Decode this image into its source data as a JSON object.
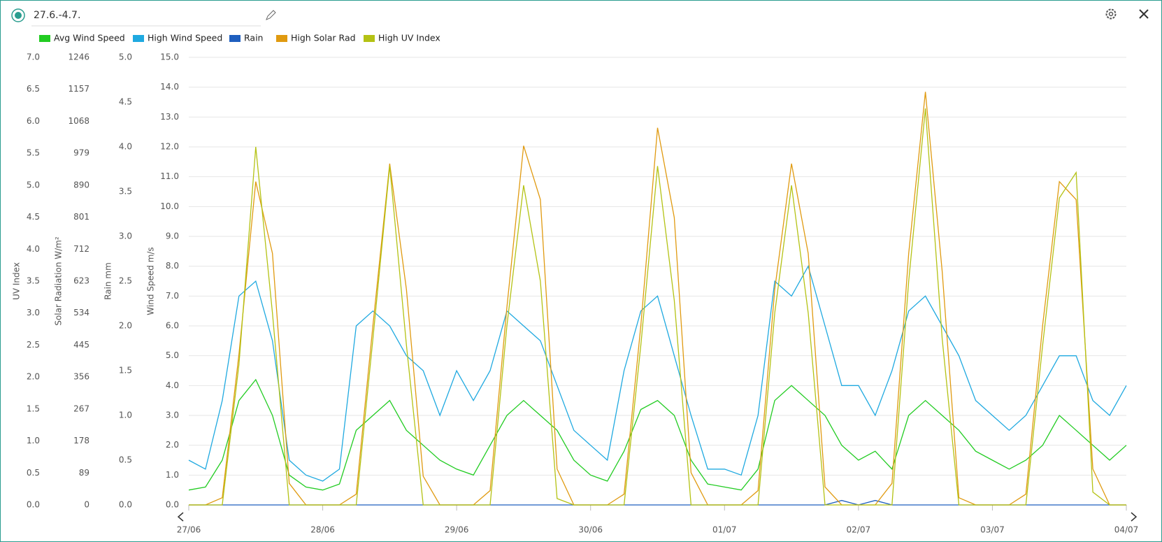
{
  "chart_data": {
    "type": "line",
    "title": "27.6.-4.7.",
    "categories": [
      "27/06",
      null,
      null,
      null,
      null,
      null,
      null,
      null,
      "28/06",
      null,
      null,
      null,
      null,
      null,
      null,
      null,
      "29/06",
      null,
      null,
      null,
      null,
      null,
      null,
      null,
      "30/06",
      null,
      null,
      null,
      null,
      null,
      null,
      null,
      "01/07",
      null,
      null,
      null,
      null,
      null,
      null,
      null,
      "02/07",
      null,
      null,
      null,
      null,
      null,
      null,
      null,
      "03/07",
      null,
      null,
      null,
      null,
      null,
      null,
      null,
      "04/07"
    ],
    "series": [
      {
        "name": "Avg Wind Speed",
        "color": "#22cc22",
        "axis": "y",
        "values": [
          0.5,
          0.6,
          1.5,
          3.5,
          4.2,
          3.0,
          1.0,
          0.6,
          0.5,
          0.7,
          2.5,
          3.0,
          3.5,
          2.5,
          2.0,
          1.5,
          1.2,
          1.0,
          2.0,
          3.0,
          3.5,
          3.0,
          2.5,
          1.5,
          1.0,
          0.8,
          1.8,
          3.2,
          3.5,
          3.0,
          1.5,
          0.7,
          0.6,
          0.5,
          1.2,
          3.5,
          4.0,
          3.5,
          3.0,
          2.0,
          1.5,
          1.8,
          1.2,
          3.0,
          3.5,
          3.0,
          2.5,
          1.8,
          1.5,
          1.2,
          1.5,
          2.0,
          3.0,
          2.5,
          2.0,
          1.5,
          2.0
        ]
      },
      {
        "name": "High Wind Speed",
        "color": "#1fa9e0",
        "axis": "y",
        "values": [
          1.5,
          1.2,
          3.5,
          7.0,
          7.5,
          5.5,
          1.5,
          1.0,
          0.8,
          1.2,
          6.0,
          6.5,
          6.0,
          5.0,
          4.5,
          3.0,
          4.5,
          3.5,
          4.5,
          6.5,
          6.0,
          5.5,
          4.0,
          2.5,
          2.0,
          1.5,
          4.5,
          6.5,
          7.0,
          5.0,
          3.0,
          1.2,
          1.2,
          1.0,
          3.0,
          7.5,
          7.0,
          8.0,
          6.0,
          4.0,
          4.0,
          3.0,
          4.5,
          6.5,
          7.0,
          6.0,
          5.0,
          3.5,
          3.0,
          2.5,
          3.0,
          4.0,
          5.0,
          5.0,
          3.5,
          3.0,
          4.0
        ]
      },
      {
        "name": "Rain",
        "color": "#1f5fbf",
        "axis": "y2",
        "values": [
          0,
          0,
          0,
          0,
          0,
          0,
          0,
          0,
          0,
          0,
          0,
          0,
          0,
          0,
          0,
          0,
          0,
          0,
          0,
          0,
          0,
          0,
          0,
          0,
          0,
          0,
          0,
          0,
          0,
          0,
          0,
          0,
          0,
          0,
          0,
          0,
          0,
          0,
          0,
          0.05,
          0,
          0.05,
          0,
          0,
          0,
          0,
          0,
          0,
          0,
          0,
          0,
          0,
          0,
          0,
          0,
          0,
          0
        ]
      },
      {
        "name": "High Solar Rad",
        "color": "#e09a10",
        "axis": "y3",
        "values": [
          0,
          0,
          20,
          420,
          900,
          700,
          60,
          0,
          0,
          0,
          30,
          500,
          950,
          600,
          80,
          0,
          0,
          0,
          40,
          550,
          1000,
          850,
          100,
          0,
          0,
          0,
          30,
          500,
          1050,
          800,
          90,
          0,
          0,
          0,
          40,
          600,
          950,
          700,
          50,
          0,
          0,
          0,
          60,
          700,
          1150,
          650,
          20,
          0,
          0,
          0,
          30,
          500,
          900,
          850,
          100,
          0,
          0
        ]
      },
      {
        "name": "High UV Index",
        "color": "#b4c214",
        "axis": "y4",
        "values": [
          0,
          0,
          0,
          2.2,
          5.6,
          3.0,
          0,
          0,
          0,
          0,
          0,
          2.6,
          5.3,
          2.5,
          0,
          0,
          0,
          0,
          0,
          2.8,
          5.0,
          3.5,
          0.1,
          0,
          0,
          0,
          0,
          2.5,
          5.3,
          3.2,
          0,
          0,
          0,
          0,
          0,
          3.0,
          5.0,
          3.0,
          0,
          0,
          0,
          0,
          0,
          3.5,
          6.2,
          2.6,
          0,
          0,
          0,
          0,
          0,
          2.5,
          4.8,
          5.2,
          0.2,
          0,
          0
        ]
      }
    ],
    "ylabel": "Wind Speed m/s",
    "ylim": [
      0,
      15
    ],
    "yticks": [
      {
        "value": 0,
        "label": "0.0"
      },
      {
        "value": 1,
        "label": "1.0"
      },
      {
        "value": 2,
        "label": "2.0"
      },
      {
        "value": 3,
        "label": "3.0"
      },
      {
        "value": 4,
        "label": "4.0"
      },
      {
        "value": 5,
        "label": "5.0"
      },
      {
        "value": 6,
        "label": "6.0"
      },
      {
        "value": 7,
        "label": "7.0"
      },
      {
        "value": 8,
        "label": "8.0"
      },
      {
        "value": 9,
        "label": "9.0"
      },
      {
        "value": 10,
        "label": "10.0"
      },
      {
        "value": 11,
        "label": "11.0"
      },
      {
        "value": 12,
        "label": "12.0"
      },
      {
        "value": 13,
        "label": "13.0"
      },
      {
        "value": 14,
        "label": "14.0"
      },
      {
        "value": 15,
        "label": "15.0"
      }
    ],
    "y2label": "Rain mm",
    "y2lim": [
      0,
      5
    ],
    "y2ticks": [
      {
        "value": 0,
        "label": "0.0"
      },
      {
        "value": 0.5,
        "label": "0.5"
      },
      {
        "value": 1,
        "label": "1.0"
      },
      {
        "value": 1.5,
        "label": "1.5"
      },
      {
        "value": 2,
        "label": "2.0"
      },
      {
        "value": 2.5,
        "label": "2.5"
      },
      {
        "value": 3,
        "label": "3.0"
      },
      {
        "value": 3.5,
        "label": "3.5"
      },
      {
        "value": 4,
        "label": "4.0"
      },
      {
        "value": 4.5,
        "label": "4.5"
      },
      {
        "value": 5,
        "label": "5.0"
      }
    ],
    "y3label": "Solar Radiation W/m²",
    "y3lim": [
      0,
      1246
    ],
    "y3ticks": [
      0,
      89,
      178,
      267,
      356,
      445,
      534,
      623,
      712,
      801,
      890,
      979,
      1068,
      1157,
      1246
    ],
    "y4label": "UV Index",
    "y4lim": [
      0,
      7
    ],
    "y4ticks": [
      {
        "value": 0,
        "label": "0.0"
      },
      {
        "value": 0.5,
        "label": "0.5"
      },
      {
        "value": 1,
        "label": "1.0"
      },
      {
        "value": 1.5,
        "label": "1.5"
      },
      {
        "value": 2,
        "label": "2.0"
      },
      {
        "value": 2.5,
        "label": "2.5"
      },
      {
        "value": 3,
        "label": "3.0"
      },
      {
        "value": 3.5,
        "label": "3.5"
      },
      {
        "value": 4,
        "label": "4.0"
      },
      {
        "value": 4.5,
        "label": "4.5"
      },
      {
        "value": 5,
        "label": "5.0"
      },
      {
        "value": 5.5,
        "label": "5.5"
      },
      {
        "value": 6,
        "label": "6.0"
      },
      {
        "value": 6.5,
        "label": "6.5"
      },
      {
        "value": 7,
        "label": "7.0"
      }
    ],
    "grid": true,
    "legend": "top-left"
  }
}
